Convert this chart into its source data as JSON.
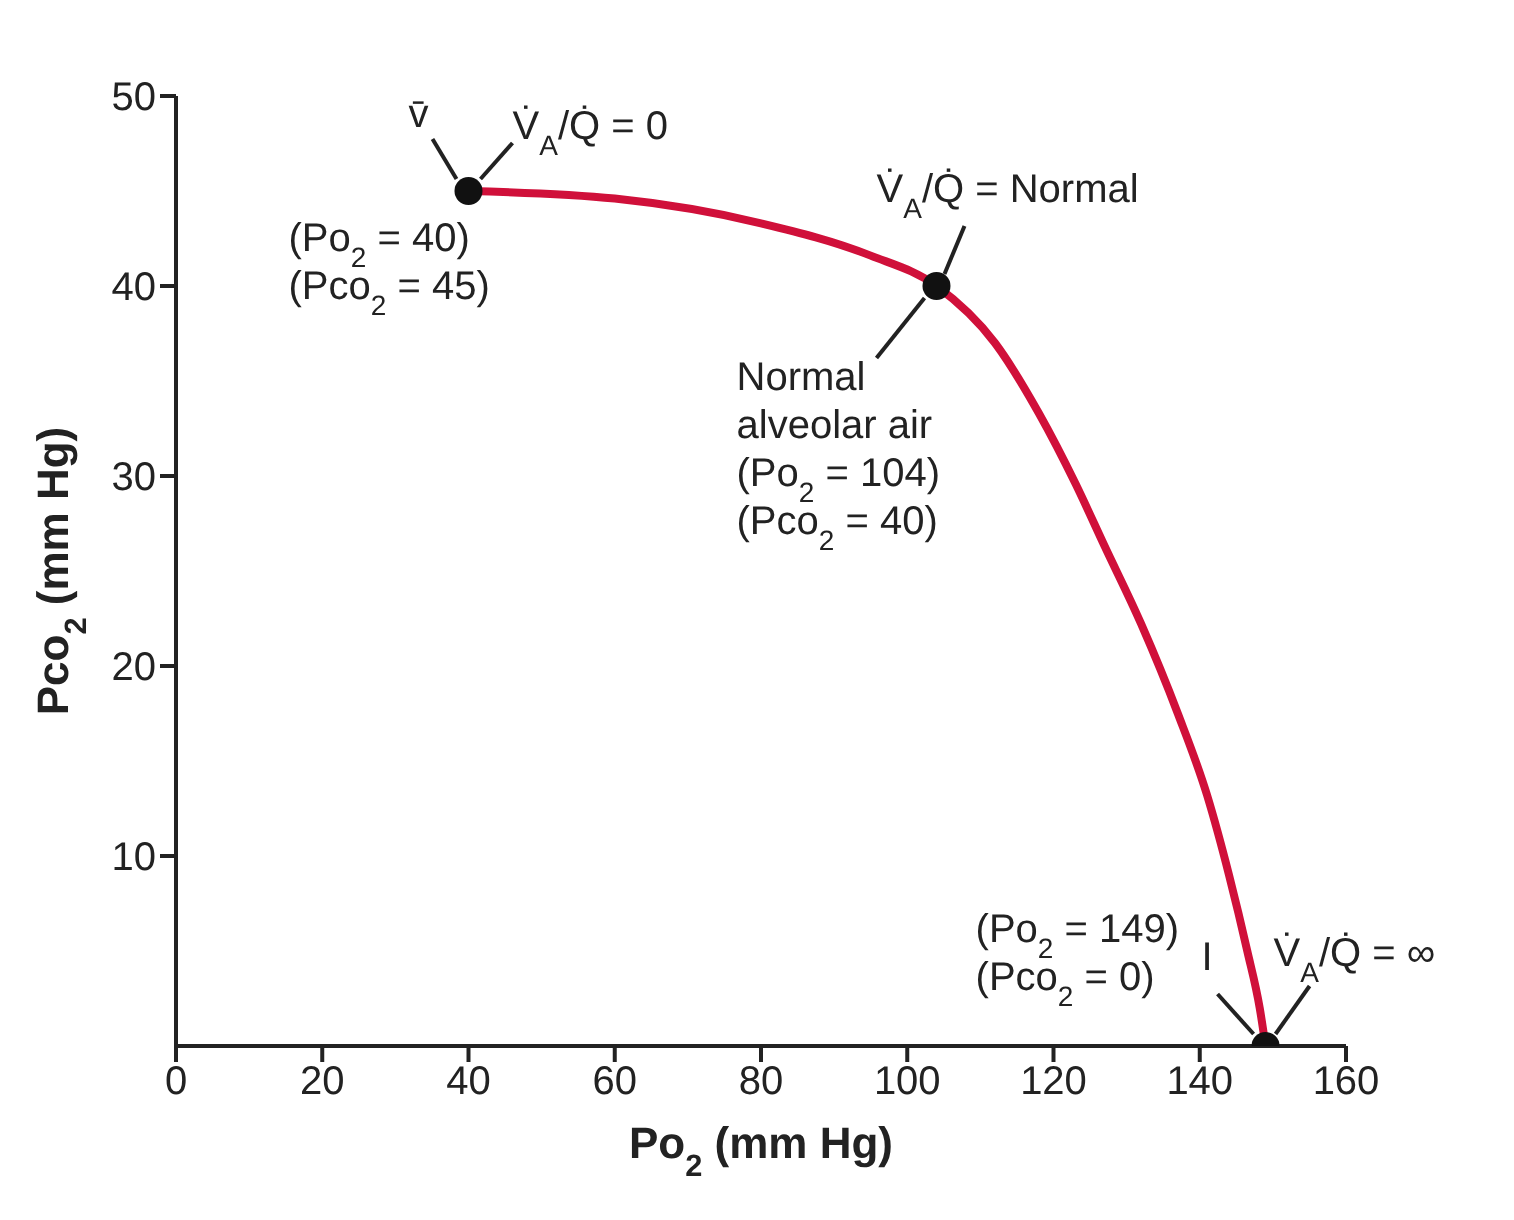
{
  "chart_data": {
    "type": "line",
    "xlabel": "Po$_{2}$ (mm Hg)",
    "ylabel": "Pco$_{2}$ (mm Hg)",
    "xlim": [
      0,
      160
    ],
    "ylim": [
      0,
      50
    ],
    "xticks": [
      0,
      20,
      40,
      60,
      80,
      100,
      120,
      140,
      160
    ],
    "yticks": [
      10,
      20,
      30,
      40,
      50
    ],
    "series": [
      {
        "color": "#d0103a",
        "marker": "none",
        "x": [
          40,
          60,
          80,
          95,
          104,
          112,
          118,
          123,
          127,
          132,
          137,
          141,
          144,
          146.5,
          148.2,
          149
        ],
        "values": [
          45,
          44.6,
          43.3,
          41.6,
          40,
          37,
          33.3,
          29.6,
          26.3,
          22.2,
          17.5,
          13.2,
          9,
          5,
          2,
          0
        ]
      },
      {
        "type": "scatter",
        "color": "#111111",
        "marker": "circle",
        "x": [
          40,
          104,
          149
        ],
        "values": [
          45,
          40,
          0
        ]
      }
    ],
    "annotations": [
      {
        "text": "v̄",
        "x": 40,
        "y": 45
      },
      {
        "text": "V̇$_{A}$/Q̇ = 0",
        "x": 40,
        "y": 45
      },
      {
        "text": "(Po$_{2}$ = 40)\n(Pco$_{2}$ = 45)",
        "x": 40,
        "y": 45
      },
      {
        "text": "V̇$_{A}$/Q̇ = Normal",
        "x": 104,
        "y": 40
      },
      {
        "text": "Normal\nalveolar air\n(Po$_{2}$ = 104)\n(Pco$_{2}$ = 40)",
        "x": 104,
        "y": 40
      },
      {
        "text": "(Po$_{2}$ = 149)\n(Pco$_{2}$ = 0)",
        "x": 149,
        "y": 0
      },
      {
        "text": "I",
        "x": 149,
        "y": 0
      },
      {
        "text": "V̇$_{A}$/Q̇ = ∞",
        "x": 149,
        "y": 0
      }
    ]
  }
}
